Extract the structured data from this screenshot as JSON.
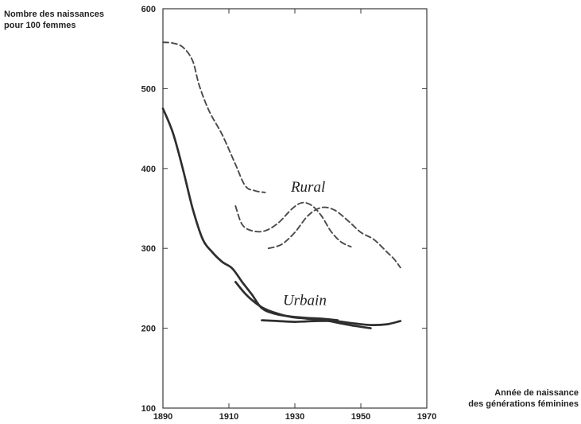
{
  "chart_data": {
    "type": "line",
    "ylabel": [
      "Nombre des naissances",
      "pour 100 femmes"
    ],
    "xlabel": [
      "Année de naissance",
      "des générations féminines"
    ],
    "xlim": [
      1890,
      1970
    ],
    "ylim": [
      100,
      600
    ],
    "xticks": [
      1890,
      1910,
      1930,
      1950,
      1970
    ],
    "yticks": [
      100,
      200,
      300,
      400,
      500,
      600
    ],
    "grid": false,
    "legend": "none",
    "series_labels": [
      {
        "text": "Rural",
        "x": 1934,
        "y": 371
      },
      {
        "text": "Urbain",
        "x": 1933,
        "y": 229
      }
    ],
    "series": [
      {
        "style": "dashed",
        "values": [
          [
            1890,
            558
          ],
          [
            1893,
            557
          ],
          [
            1896,
            552
          ],
          [
            1899,
            535
          ],
          [
            1901,
            504
          ],
          [
            1904,
            472
          ],
          [
            1908,
            442
          ],
          [
            1912,
            405
          ],
          [
            1915,
            378
          ],
          [
            1918,
            372
          ],
          [
            1921,
            370
          ]
        ]
      },
      {
        "style": "dashed",
        "values": [
          [
            1912,
            353
          ],
          [
            1914,
            330
          ],
          [
            1917,
            322
          ],
          [
            1921,
            322
          ],
          [
            1925,
            332
          ],
          [
            1929,
            349
          ],
          [
            1932,
            357
          ],
          [
            1935,
            354
          ],
          [
            1938,
            341
          ],
          [
            1941,
            321
          ],
          [
            1944,
            308
          ],
          [
            1947,
            302
          ]
        ]
      },
      {
        "style": "dashed",
        "values": [
          [
            1922,
            300
          ],
          [
            1926,
            305
          ],
          [
            1930,
            320
          ],
          [
            1934,
            341
          ],
          [
            1938,
            351
          ],
          [
            1942,
            348
          ],
          [
            1946,
            335
          ],
          [
            1950,
            320
          ],
          [
            1954,
            311
          ],
          [
            1958,
            295
          ],
          [
            1960,
            287
          ],
          [
            1962,
            276
          ]
        ]
      },
      {
        "style": "solid",
        "values": [
          [
            1890,
            475
          ],
          [
            1893,
            445
          ],
          [
            1896,
            400
          ],
          [
            1899,
            350
          ],
          [
            1902,
            312
          ],
          [
            1905,
            295
          ],
          [
            1908,
            283
          ],
          [
            1911,
            275
          ],
          [
            1914,
            258
          ],
          [
            1917,
            242
          ],
          [
            1920,
            225
          ],
          [
            1924,
            218
          ],
          [
            1928,
            215
          ],
          [
            1933,
            213
          ],
          [
            1938,
            212
          ],
          [
            1943,
            210
          ]
        ]
      },
      {
        "style": "solid",
        "values": [
          [
            1912,
            258
          ],
          [
            1915,
            243
          ],
          [
            1918,
            232
          ],
          [
            1921,
            224
          ],
          [
            1925,
            218
          ],
          [
            1929,
            214
          ],
          [
            1934,
            212
          ],
          [
            1939,
            210
          ],
          [
            1944,
            206
          ],
          [
            1948,
            203
          ],
          [
            1953,
            200
          ]
        ]
      },
      {
        "style": "solid",
        "values": [
          [
            1920,
            210
          ],
          [
            1925,
            209
          ],
          [
            1930,
            208
          ],
          [
            1936,
            209
          ],
          [
            1942,
            209
          ],
          [
            1948,
            206
          ],
          [
            1953,
            204
          ],
          [
            1958,
            205
          ],
          [
            1962,
            209
          ]
        ]
      }
    ],
    "colors": {
      "ink": "#2e2e2e",
      "dash": "#4a4a4a",
      "frame": "#3a3a3a"
    }
  }
}
